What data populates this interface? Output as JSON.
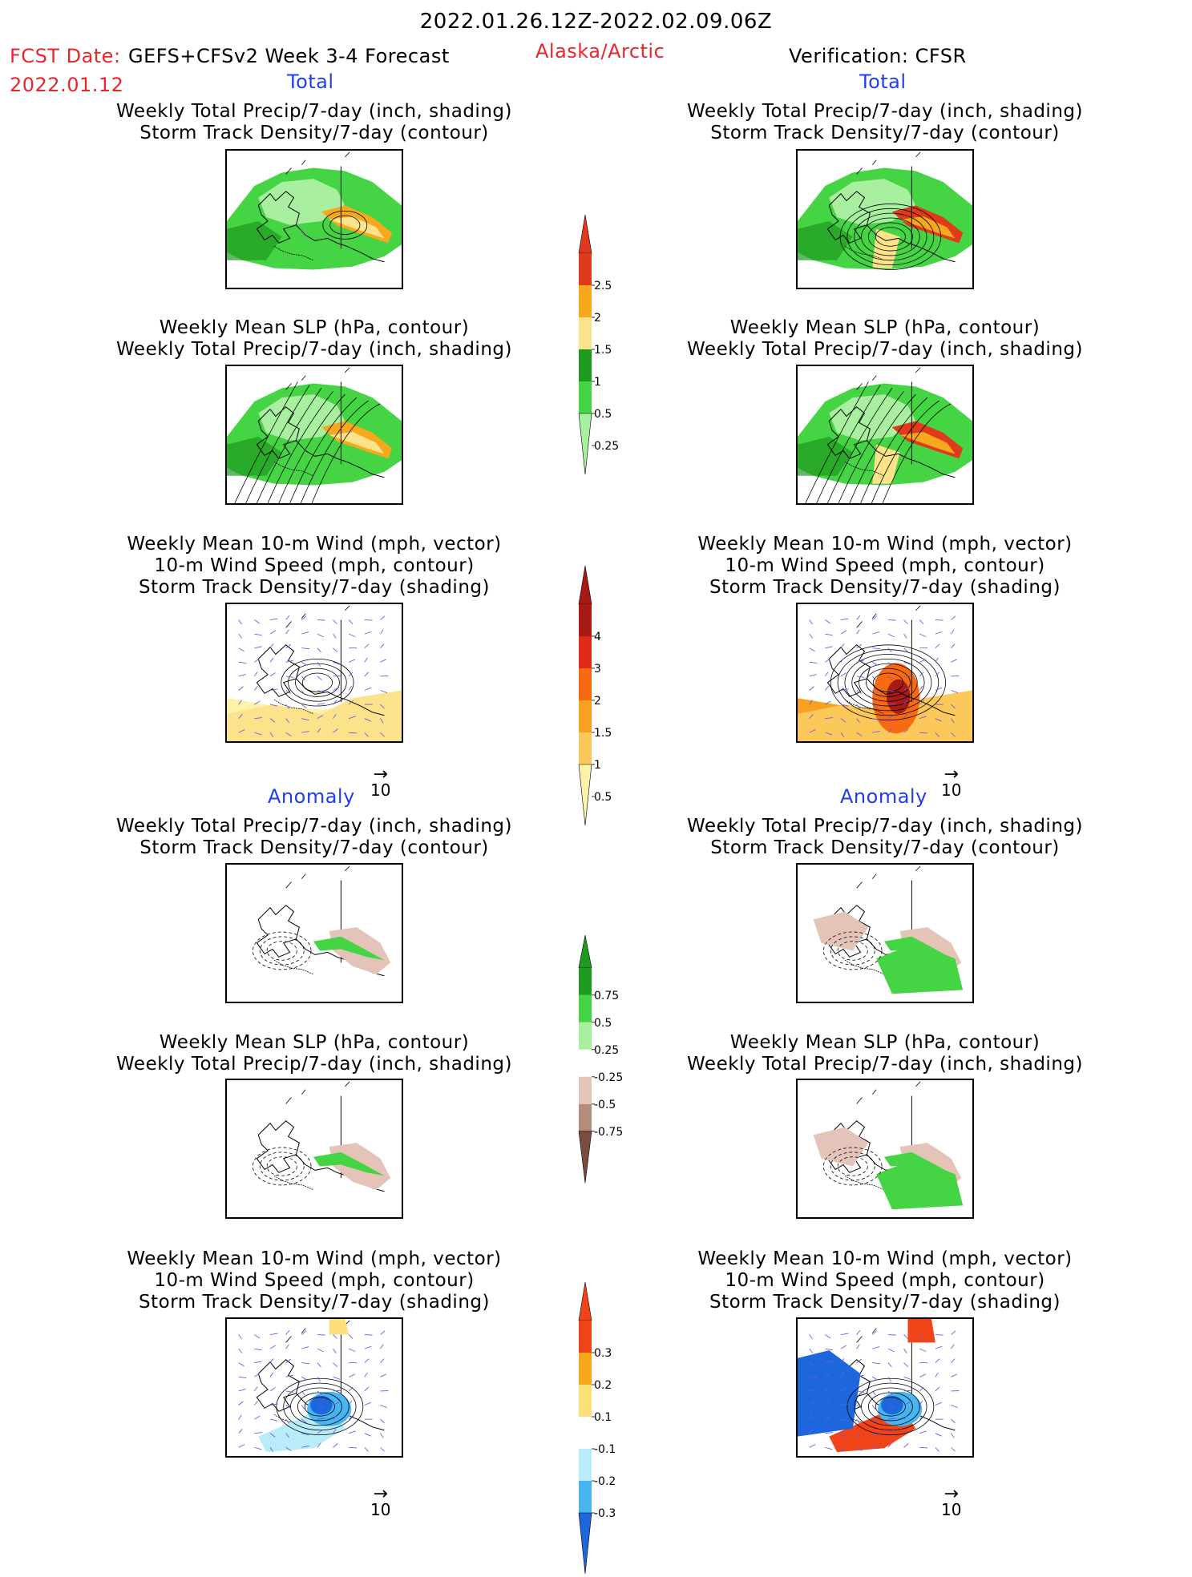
{
  "header": {
    "period": "2022.01.26.12Z-2022.02.09.06Z",
    "fcst_label": "FCST Date:",
    "model": "GEFS+CFSv2 Week 3-4 Forecast",
    "fcst_date": "2022.01.12",
    "region": "Alaska/Arctic",
    "verification": "Verification: CFSR"
  },
  "sections": {
    "total": "Total",
    "anomaly": "Anomaly"
  },
  "panel_titles": {
    "precip_storm": [
      "Weekly Total Precip/7-day (inch, shading)",
      "Storm Track Density/7-day (contour)"
    ],
    "slp_precip": [
      "Weekly Mean SLP (hPa, contour)",
      "Weekly Total Precip/7-day (inch, shading)"
    ],
    "wind_storm": [
      "Weekly Mean 10-m Wind (mph, vector)",
      "10-m Wind Speed (mph, contour)",
      "Storm Track Density/7-day (shading)"
    ]
  },
  "vector_reference": "10",
  "colorbars": {
    "precip_total": {
      "labels": [
        "2.5",
        "2",
        "1.5",
        "1",
        "0.5",
        "0.25"
      ],
      "colors": [
        "#e03a1c",
        "#f8a81c",
        "#fde28c",
        "#1e9a1e",
        "#44d444",
        "#a8f0a0"
      ]
    },
    "storm_total": {
      "labels": [
        "4",
        "3",
        "2",
        "1.5",
        "1",
        "0.5"
      ],
      "colors": [
        "#a81a14",
        "#e02a16",
        "#f86a12",
        "#f8a020",
        "#fcc85a",
        "#fdf3a8"
      ]
    },
    "precip_anom": {
      "labels": [
        "0.75",
        "0.5",
        "0.25",
        "-0.25",
        "-0.5",
        "-0.75"
      ],
      "colors": [
        "#1e9a1e",
        "#44d444",
        "#a8f0a0",
        "#ffffff",
        "#e4c4b8",
        "#b48c7c",
        "#7a4e3e"
      ]
    },
    "storm_anom": {
      "labels": [
        "0.3",
        "0.2",
        "0.1",
        "-0.1",
        "-0.2",
        "-0.3"
      ],
      "colors": [
        "#f04418",
        "#f8a81c",
        "#fde07a",
        "#ffffff",
        "#b8ecf8",
        "#48b4f0",
        "#1e66dc"
      ]
    }
  },
  "colors": {
    "title_red": "#e8262b",
    "section_blue": "#1f3ef0"
  }
}
